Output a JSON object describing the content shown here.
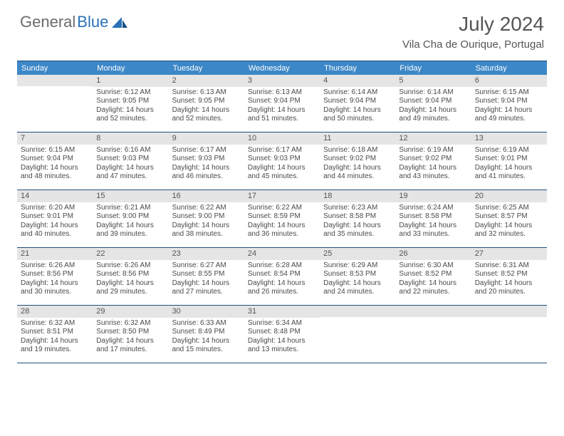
{
  "brand": {
    "part1": "General",
    "part2": "Blue"
  },
  "title": "July 2024",
  "location": "Vila Cha de Ourique, Portugal",
  "colors": {
    "header_bg": "#3c87c7",
    "border": "#234e7c",
    "daynum_bg": "#e5e5e5",
    "text": "#4a4a4a",
    "brand_gray": "#6b6b6b",
    "brand_blue": "#2a71b8"
  },
  "day_names": [
    "Sunday",
    "Monday",
    "Tuesday",
    "Wednesday",
    "Thursday",
    "Friday",
    "Saturday"
  ],
  "weeks": [
    [
      {
        "n": "",
        "lines": []
      },
      {
        "n": "1",
        "lines": [
          "Sunrise: 6:12 AM",
          "Sunset: 9:05 PM",
          "Daylight: 14 hours and 52 minutes."
        ]
      },
      {
        "n": "2",
        "lines": [
          "Sunrise: 6:13 AM",
          "Sunset: 9:05 PM",
          "Daylight: 14 hours and 52 minutes."
        ]
      },
      {
        "n": "3",
        "lines": [
          "Sunrise: 6:13 AM",
          "Sunset: 9:04 PM",
          "Daylight: 14 hours and 51 minutes."
        ]
      },
      {
        "n": "4",
        "lines": [
          "Sunrise: 6:14 AM",
          "Sunset: 9:04 PM",
          "Daylight: 14 hours and 50 minutes."
        ]
      },
      {
        "n": "5",
        "lines": [
          "Sunrise: 6:14 AM",
          "Sunset: 9:04 PM",
          "Daylight: 14 hours and 49 minutes."
        ]
      },
      {
        "n": "6",
        "lines": [
          "Sunrise: 6:15 AM",
          "Sunset: 9:04 PM",
          "Daylight: 14 hours and 49 minutes."
        ]
      }
    ],
    [
      {
        "n": "7",
        "lines": [
          "Sunrise: 6:15 AM",
          "Sunset: 9:04 PM",
          "Daylight: 14 hours and 48 minutes."
        ]
      },
      {
        "n": "8",
        "lines": [
          "Sunrise: 6:16 AM",
          "Sunset: 9:03 PM",
          "Daylight: 14 hours and 47 minutes."
        ]
      },
      {
        "n": "9",
        "lines": [
          "Sunrise: 6:17 AM",
          "Sunset: 9:03 PM",
          "Daylight: 14 hours and 46 minutes."
        ]
      },
      {
        "n": "10",
        "lines": [
          "Sunrise: 6:17 AM",
          "Sunset: 9:03 PM",
          "Daylight: 14 hours and 45 minutes."
        ]
      },
      {
        "n": "11",
        "lines": [
          "Sunrise: 6:18 AM",
          "Sunset: 9:02 PM",
          "Daylight: 14 hours and 44 minutes."
        ]
      },
      {
        "n": "12",
        "lines": [
          "Sunrise: 6:19 AM",
          "Sunset: 9:02 PM",
          "Daylight: 14 hours and 43 minutes."
        ]
      },
      {
        "n": "13",
        "lines": [
          "Sunrise: 6:19 AM",
          "Sunset: 9:01 PM",
          "Daylight: 14 hours and 41 minutes."
        ]
      }
    ],
    [
      {
        "n": "14",
        "lines": [
          "Sunrise: 6:20 AM",
          "Sunset: 9:01 PM",
          "Daylight: 14 hours and 40 minutes."
        ]
      },
      {
        "n": "15",
        "lines": [
          "Sunrise: 6:21 AM",
          "Sunset: 9:00 PM",
          "Daylight: 14 hours and 39 minutes."
        ]
      },
      {
        "n": "16",
        "lines": [
          "Sunrise: 6:22 AM",
          "Sunset: 9:00 PM",
          "Daylight: 14 hours and 38 minutes."
        ]
      },
      {
        "n": "17",
        "lines": [
          "Sunrise: 6:22 AM",
          "Sunset: 8:59 PM",
          "Daylight: 14 hours and 36 minutes."
        ]
      },
      {
        "n": "18",
        "lines": [
          "Sunrise: 6:23 AM",
          "Sunset: 8:58 PM",
          "Daylight: 14 hours and 35 minutes."
        ]
      },
      {
        "n": "19",
        "lines": [
          "Sunrise: 6:24 AM",
          "Sunset: 8:58 PM",
          "Daylight: 14 hours and 33 minutes."
        ]
      },
      {
        "n": "20",
        "lines": [
          "Sunrise: 6:25 AM",
          "Sunset: 8:57 PM",
          "Daylight: 14 hours and 32 minutes."
        ]
      }
    ],
    [
      {
        "n": "21",
        "lines": [
          "Sunrise: 6:26 AM",
          "Sunset: 8:56 PM",
          "Daylight: 14 hours and 30 minutes."
        ]
      },
      {
        "n": "22",
        "lines": [
          "Sunrise: 6:26 AM",
          "Sunset: 8:56 PM",
          "Daylight: 14 hours and 29 minutes."
        ]
      },
      {
        "n": "23",
        "lines": [
          "Sunrise: 6:27 AM",
          "Sunset: 8:55 PM",
          "Daylight: 14 hours and 27 minutes."
        ]
      },
      {
        "n": "24",
        "lines": [
          "Sunrise: 6:28 AM",
          "Sunset: 8:54 PM",
          "Daylight: 14 hours and 26 minutes."
        ]
      },
      {
        "n": "25",
        "lines": [
          "Sunrise: 6:29 AM",
          "Sunset: 8:53 PM",
          "Daylight: 14 hours and 24 minutes."
        ]
      },
      {
        "n": "26",
        "lines": [
          "Sunrise: 6:30 AM",
          "Sunset: 8:52 PM",
          "Daylight: 14 hours and 22 minutes."
        ]
      },
      {
        "n": "27",
        "lines": [
          "Sunrise: 6:31 AM",
          "Sunset: 8:52 PM",
          "Daylight: 14 hours and 20 minutes."
        ]
      }
    ],
    [
      {
        "n": "28",
        "lines": [
          "Sunrise: 6:32 AM",
          "Sunset: 8:51 PM",
          "Daylight: 14 hours and 19 minutes."
        ]
      },
      {
        "n": "29",
        "lines": [
          "Sunrise: 6:32 AM",
          "Sunset: 8:50 PM",
          "Daylight: 14 hours and 17 minutes."
        ]
      },
      {
        "n": "30",
        "lines": [
          "Sunrise: 6:33 AM",
          "Sunset: 8:49 PM",
          "Daylight: 14 hours and 15 minutes."
        ]
      },
      {
        "n": "31",
        "lines": [
          "Sunrise: 6:34 AM",
          "Sunset: 8:48 PM",
          "Daylight: 14 hours and 13 minutes."
        ]
      },
      {
        "n": "",
        "lines": []
      },
      {
        "n": "",
        "lines": []
      },
      {
        "n": "",
        "lines": []
      }
    ]
  ]
}
